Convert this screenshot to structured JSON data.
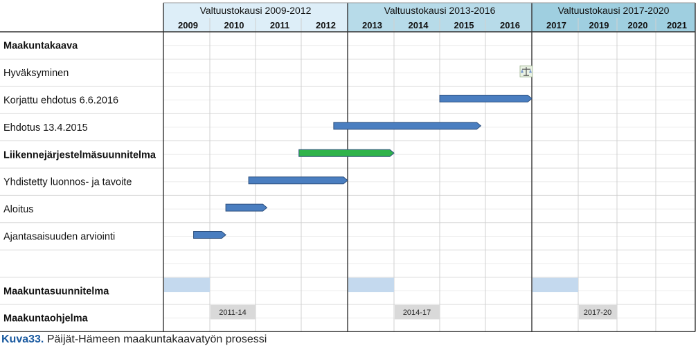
{
  "chart_data": {
    "type": "gantt",
    "periods": [
      {
        "label": "Valtuustokausi 2009-2012",
        "years": [
          "2009",
          "2010",
          "2011",
          "2012"
        ],
        "header_color": "#ddeef8"
      },
      {
        "label": "Valtuustokausi 2013-2016",
        "years": [
          "2013",
          "2014",
          "2015",
          "2016"
        ],
        "header_color": "#b7dbe9"
      },
      {
        "label": "Valtuustokausi 2017-2020",
        "years": [
          "2017",
          "2019",
          "2020",
          "2021"
        ],
        "header_color": "#9fcfe0"
      }
    ],
    "rows": [
      {
        "label": "Maakuntakaava",
        "bold": true
      },
      {
        "label": "Hyväksyminen",
        "bold": false,
        "icon": "scales-icon",
        "milestone": 2017.0
      },
      {
        "label": "Korjattu ehdotus 6.6.2016",
        "bold": false,
        "bar": {
          "start": 2015.0,
          "end": 2017.0,
          "color": "#4a7ec0"
        }
      },
      {
        "label": "Ehdotus 13.4.2015",
        "bold": false,
        "bar": {
          "start": 2012.7,
          "end": 2015.9,
          "color": "#4a7ec0"
        }
      },
      {
        "label": "Liikennejärjestelmäsuunnitelma",
        "bold": true,
        "bar": {
          "start": 2011.95,
          "end": 2014.0,
          "color": "#2fb34a"
        }
      },
      {
        "label": "Yhdistetty luonnos- ja tavoite",
        "bold": false,
        "bar": {
          "start": 2010.85,
          "end": 2013.0,
          "color": "#4a7ec0"
        }
      },
      {
        "label": "Aloitus",
        "bold": false,
        "bar": {
          "start": 2010.35,
          "end": 2011.25,
          "color": "#4a7ec0"
        }
      },
      {
        "label": "Ajantasaisuuden arviointi",
        "bold": false,
        "bar": {
          "start": 2009.65,
          "end": 2010.35,
          "color": "#4a7ec0"
        }
      },
      {
        "label": "",
        "bold": false
      },
      {
        "label": "Maakuntasuunnitelma",
        "bold": true,
        "cells": [
          {
            "start": 2009,
            "end": 2010,
            "color": "#c4d9ee",
            "text": ""
          },
          {
            "start": 2013,
            "end": 2014,
            "color": "#c4d9ee",
            "text": ""
          },
          {
            "start": 2017,
            "end": 2018,
            "color": "#c4d9ee",
            "text": ""
          }
        ]
      },
      {
        "label": "Maakuntaohjelma",
        "bold": true,
        "cells": [
          {
            "start": 2010,
            "end": 2011,
            "color": "#d9d9d9",
            "text": "2011-14"
          },
          {
            "start": 2014,
            "end": 2015,
            "color": "#d9d9d9",
            "text": "2014-17"
          },
          {
            "start": 2018,
            "end": 2019,
            "color": "#d9d9d9",
            "text": "2017-20"
          }
        ]
      }
    ]
  },
  "caption": {
    "number": "Kuva33.",
    "text": "Päijät-Hämeen maakuntakaavatyön prosessi"
  }
}
